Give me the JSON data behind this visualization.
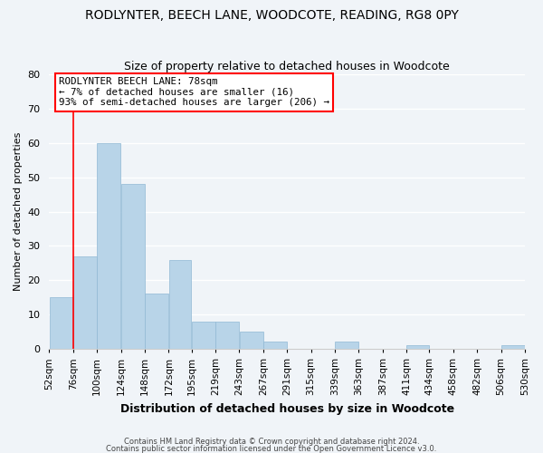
{
  "title": "RODLYNTER, BEECH LANE, WOODCOTE, READING, RG8 0PY",
  "subtitle": "Size of property relative to detached houses in Woodcote",
  "xlabel": "Distribution of detached houses by size in Woodcote",
  "ylabel": "Number of detached properties",
  "bar_color": "#b8d4e8",
  "bar_edge_color": "#90b8d4",
  "background_color": "#f0f4f8",
  "grid_color": "#ffffff",
  "red_line_x": 76,
  "annotation_line1": "RODLYNTER BEECH LANE: 78sqm",
  "annotation_line2": "← 7% of detached houses are smaller (16)",
  "annotation_line3": "93% of semi-detached houses are larger (206) →",
  "bins": [
    52,
    76,
    100,
    124,
    148,
    172,
    195,
    219,
    243,
    267,
    291,
    315,
    339,
    363,
    387,
    411,
    434,
    458,
    482,
    506,
    530
  ],
  "counts": [
    15,
    27,
    60,
    48,
    16,
    26,
    8,
    8,
    5,
    2,
    0,
    0,
    2,
    0,
    0,
    1,
    0,
    0,
    0,
    1
  ],
  "ylim": [
    0,
    80
  ],
  "yticks": [
    0,
    10,
    20,
    30,
    40,
    50,
    60,
    70,
    80
  ],
  "footer_line1": "Contains HM Land Registry data © Crown copyright and database right 2024.",
  "footer_line2": "Contains public sector information licensed under the Open Government Licence v3.0."
}
